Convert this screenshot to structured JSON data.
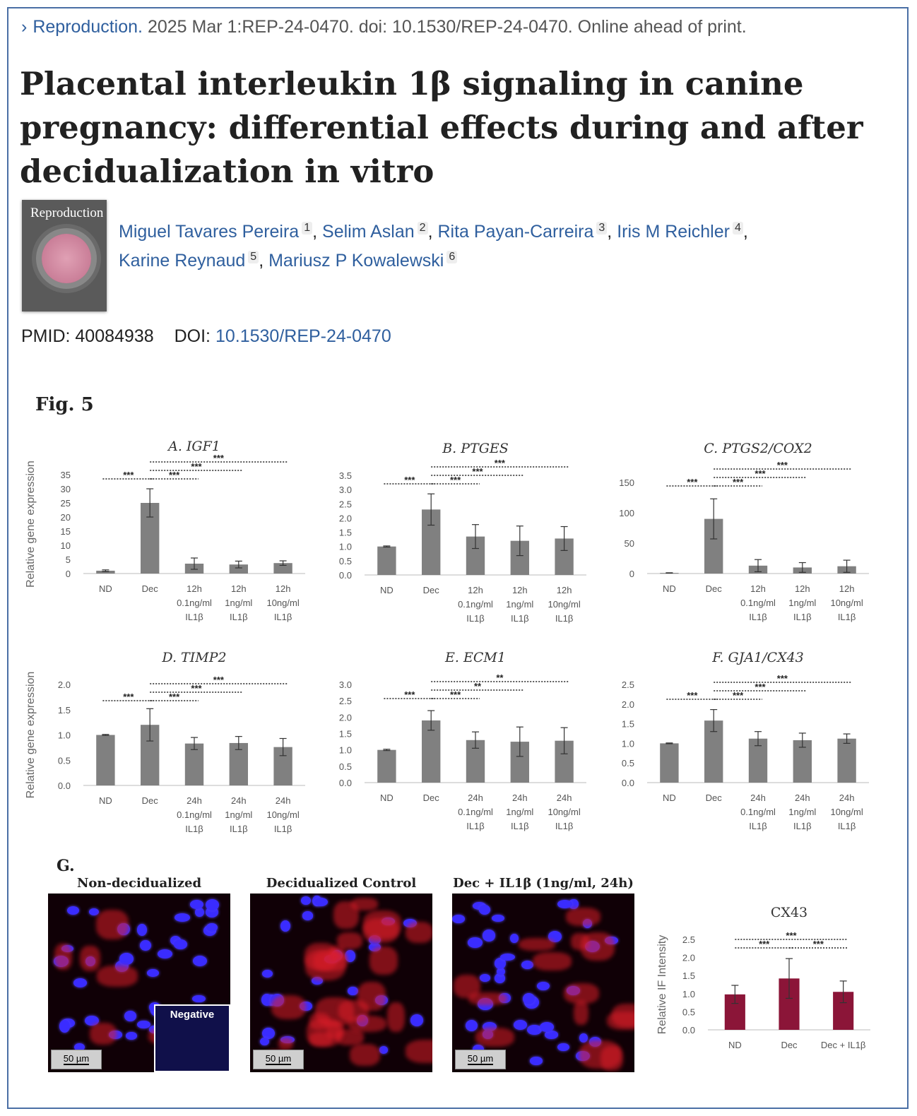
{
  "citation": {
    "journal": "Reproduction.",
    "details": "2025 Mar 1:REP-24-0470. doi: 10.1530/REP-24-0470. Online ahead of print."
  },
  "title": "Placental interleukin 1β signaling in canine pregnancy: differential effects during and after decidualization in vitro",
  "cover": {
    "journal_name": "Reproduction"
  },
  "authors": [
    {
      "name": "Miguel Tavares Pereira",
      "aff": "1"
    },
    {
      "name": "Selim Aslan",
      "aff": "2"
    },
    {
      "name": "Rita Payan-Carreira",
      "aff": "3"
    },
    {
      "name": "Iris M Reichler",
      "aff": "4"
    },
    {
      "name": "Karine Reynaud",
      "aff": "5"
    },
    {
      "name": "Mariusz P Kowalewski",
      "aff": "6"
    }
  ],
  "ids": {
    "pmid_label": "PMID:",
    "pmid": "40084938",
    "doi_label": "DOI:",
    "doi": "10.1530/REP-24-0470"
  },
  "figure": {
    "label": "Fig. 5",
    "ylabel": "Relative gene expression",
    "panel_g": {
      "label": "G.",
      "titles": [
        "Non-decidualized",
        "Decidualized Control",
        "Dec + IL1β (1ng/ml, 24h)"
      ],
      "scale_bar": "50 µm",
      "inset_label": "Negative"
    }
  },
  "chart_data": [
    {
      "type": "bar",
      "title": "A. IGF1",
      "ylabel": "Relative gene expression",
      "categories": [
        "ND",
        "Dec",
        "12h 0.1ng/ml IL1β",
        "12h 1ng/ml IL1β",
        "12h 10ng/ml IL1β"
      ],
      "values": [
        1,
        25,
        3.5,
        3.2,
        3.7
      ],
      "errors": [
        0.3,
        5,
        2,
        1.2,
        0.8
      ],
      "ylim": [
        0,
        35
      ],
      "yticks": [
        "0",
        "5",
        "10",
        "15",
        "20",
        "25",
        "30",
        "35"
      ],
      "significance": [
        "***",
        "***",
        "***",
        "***"
      ],
      "bar_color": "#808080"
    },
    {
      "type": "bar",
      "title": "B. PTGES",
      "ylabel": "",
      "categories": [
        "ND",
        "Dec",
        "12h 0.1ng/ml IL1β",
        "12h 1ng/ml IL1β",
        "12h 10ng/ml IL1β"
      ],
      "values": [
        1,
        2.3,
        1.35,
        1.2,
        1.28
      ],
      "errors": [
        0.02,
        0.55,
        0.42,
        0.52,
        0.42
      ],
      "ylim": [
        0,
        3.5
      ],
      "yticks": [
        "0.0",
        "0.5",
        "1.0",
        "1.5",
        "2.0",
        "2.5",
        "3.0",
        "3.5"
      ],
      "significance": [
        "***",
        "***",
        "***",
        "***"
      ],
      "bar_color": "#808080"
    },
    {
      "type": "bar",
      "title": "C. PTGS2/COX2",
      "ylabel": "",
      "categories": [
        "ND",
        "Dec",
        "12h 0.1ng/ml IL1β",
        "12h 1ng/ml IL1β",
        "12h 10ng/ml IL1β"
      ],
      "values": [
        1,
        90,
        13,
        10,
        12
      ],
      "errors": [
        0.3,
        33,
        10,
        8,
        10
      ],
      "ylim": [
        0,
        150
      ],
      "yticks": [
        "0",
        "50",
        "100",
        "150"
      ],
      "significance": [
        "***",
        "***",
        "***",
        "***"
      ],
      "bar_color": "#808080"
    },
    {
      "type": "bar",
      "title": "D. TIMP2",
      "ylabel": "Relative gene expression",
      "categories": [
        "ND",
        "Dec",
        "24h 0.1ng/ml IL1β",
        "24h 1ng/ml IL1β",
        "24h 10ng/ml IL1β"
      ],
      "values": [
        1,
        1.2,
        0.83,
        0.84,
        0.76
      ],
      "errors": [
        0.01,
        0.32,
        0.12,
        0.13,
        0.17
      ],
      "ylim": [
        0,
        2
      ],
      "yticks": [
        "0.0",
        "0.5",
        "1.0",
        "1.5",
        "2.0"
      ],
      "significance": [
        "***",
        "***",
        "***",
        "***"
      ],
      "bar_color": "#808080"
    },
    {
      "type": "bar",
      "title": "E. ECM1",
      "ylabel": "",
      "categories": [
        "ND",
        "Dec",
        "24h 0.1ng/ml IL1β",
        "24h 1ng/ml IL1β",
        "24h 10ng/ml IL1β"
      ],
      "values": [
        1,
        1.9,
        1.3,
        1.25,
        1.28
      ],
      "errors": [
        0.02,
        0.3,
        0.25,
        0.45,
        0.4
      ],
      "ylim": [
        0,
        3
      ],
      "yticks": [
        "0.0",
        "0.5",
        "1.0",
        "1.5",
        "2.0",
        "2.5",
        "3.0"
      ],
      "significance": [
        "***",
        "***",
        "**",
        "**"
      ],
      "bar_color": "#808080"
    },
    {
      "type": "bar",
      "title": "F. GJA1/CX43",
      "ylabel": "",
      "categories": [
        "ND",
        "Dec",
        "24h 0.1ng/ml IL1β",
        "24h 1ng/ml IL1β",
        "24h 10ng/ml IL1β"
      ],
      "values": [
        1,
        1.58,
        1.12,
        1.08,
        1.12
      ],
      "errors": [
        0.01,
        0.28,
        0.18,
        0.18,
        0.12
      ],
      "ylim": [
        0,
        2.5
      ],
      "yticks": [
        "0.0",
        "0.5",
        "1.0",
        "1.5",
        "2.0",
        "2.5"
      ],
      "significance": [
        "***",
        "***",
        "***",
        "***"
      ],
      "bar_color": "#808080"
    },
    {
      "type": "bar",
      "title": "CX43",
      "ylabel": "Relative IF Intensity",
      "categories": [
        "ND",
        "Dec",
        "Dec + IL1β"
      ],
      "values": [
        0.98,
        1.42,
        1.05
      ],
      "errors": [
        0.25,
        0.55,
        0.3
      ],
      "ylim": [
        0,
        2.5
      ],
      "yticks": [
        "0.0",
        "0.5",
        "1.0",
        "1.5",
        "2.0",
        "2.5"
      ],
      "significance": [
        "***",
        "***",
        "***"
      ],
      "bar_color": "#8b1538"
    }
  ]
}
